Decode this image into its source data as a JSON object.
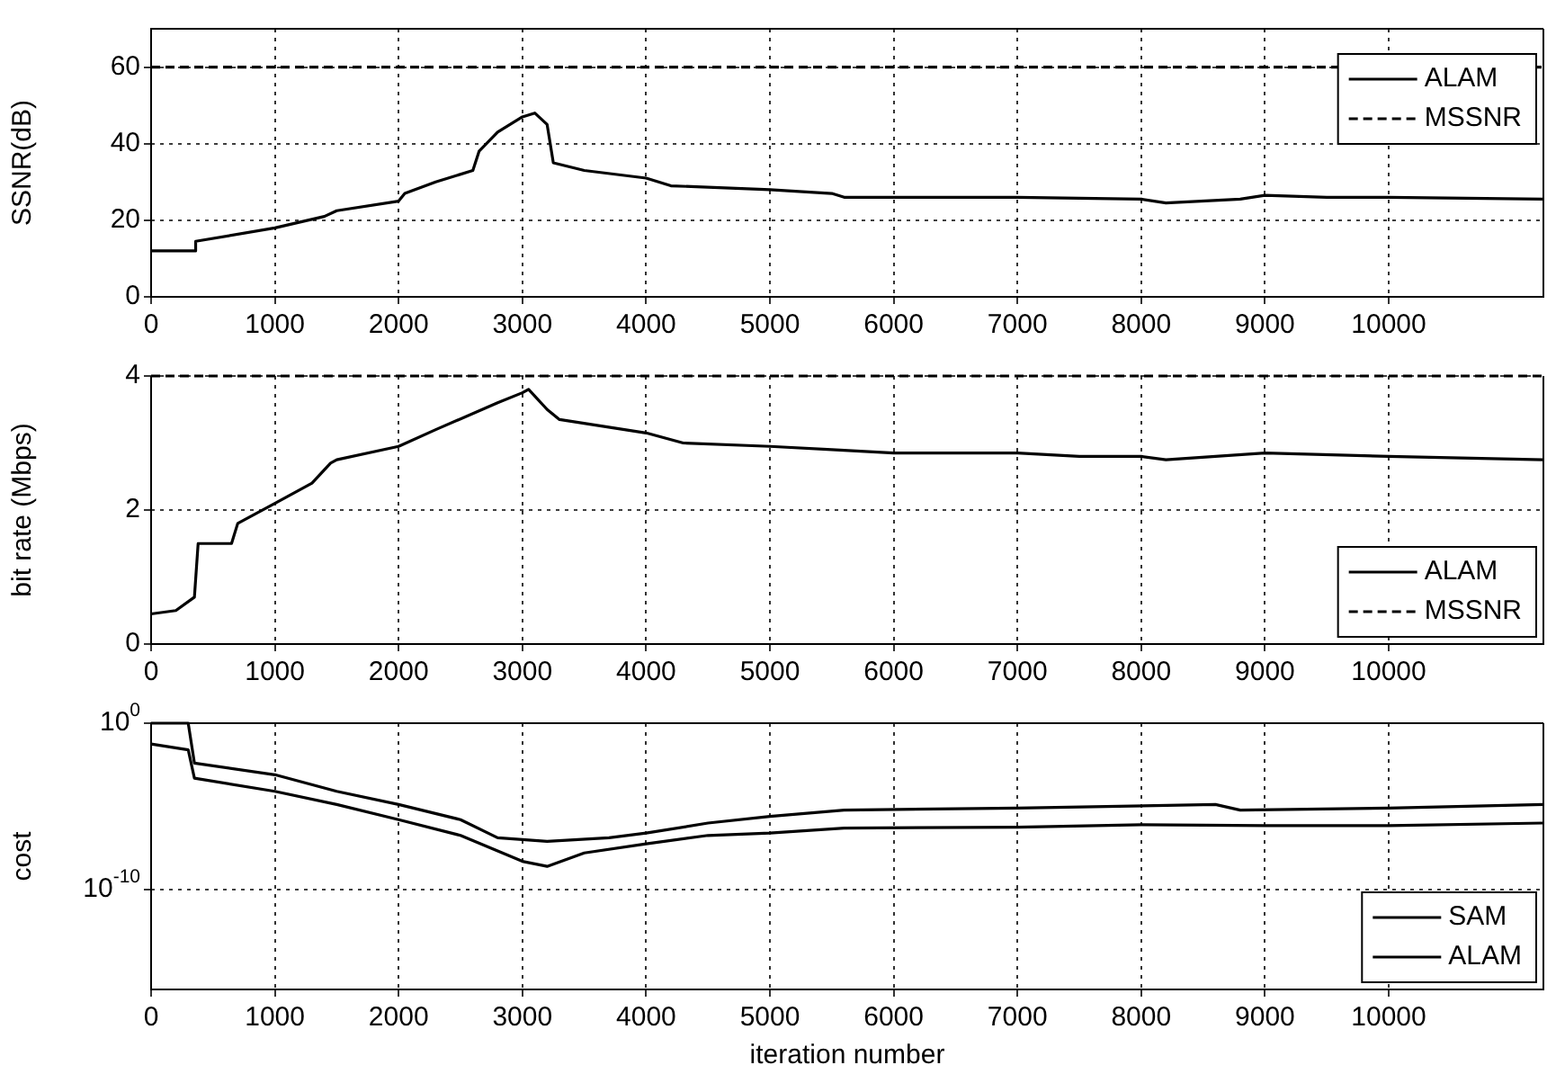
{
  "chart_data": [
    {
      "type": "line",
      "ylabel": "SSNR(dB)",
      "xlim": [
        0,
        11250
      ],
      "xticks": [
        0,
        1000,
        2000,
        3000,
        4000,
        5000,
        6000,
        7000,
        8000,
        9000,
        10000
      ],
      "ylim": [
        0,
        70
      ],
      "yticks": [
        0,
        20,
        40,
        60
      ],
      "grid": true,
      "legend": "top right",
      "marker": "none",
      "series": [
        {
          "name": "ALAM",
          "color": "#000000",
          "line_style": "solid",
          "x": [
            0,
            350,
            360,
            1000,
            1400,
            1500,
            2000,
            2050,
            2300,
            2600,
            2650,
            2800,
            3000,
            3100,
            3200,
            3250,
            3500,
            4000,
            4200,
            5000,
            5500,
            5600,
            7000,
            8000,
            8200,
            8800,
            9000,
            9500,
            10000,
            11250
          ],
          "values": [
            12,
            12,
            14.5,
            18,
            21,
            22.5,
            25,
            27,
            30,
            33,
            38,
            43,
            47,
            48,
            45,
            35,
            33,
            31,
            29,
            28,
            27,
            26,
            26,
            25.5,
            24.5,
            25.5,
            26.5,
            26,
            26,
            25.5
          ]
        },
        {
          "name": "MSSNR",
          "color": "#000000",
          "line_style": "dashed",
          "x": [
            0,
            11250
          ],
          "values": [
            60,
            60
          ]
        }
      ]
    },
    {
      "type": "line",
      "ylabel": "bit rate (Mbps)",
      "xlim": [
        0,
        11250
      ],
      "xticks": [
        0,
        1000,
        2000,
        3000,
        4000,
        5000,
        6000,
        7000,
        8000,
        9000,
        10000
      ],
      "ylim": [
        0,
        4
      ],
      "yticks": [
        0,
        2,
        4
      ],
      "grid": true,
      "legend": "bottom right",
      "marker": "none",
      "series": [
        {
          "name": "ALAM",
          "color": "#000000",
          "line_style": "solid",
          "x": [
            0,
            200,
            350,
            380,
            650,
            700,
            1000,
            1300,
            1450,
            1500,
            2000,
            2300,
            2800,
            3000,
            3050,
            3200,
            3300,
            4000,
            4300,
            5000,
            5500,
            6000,
            7000,
            7500,
            8000,
            8200,
            9000,
            10000,
            11250
          ],
          "values": [
            0.45,
            0.5,
            0.7,
            1.5,
            1.5,
            1.8,
            2.1,
            2.4,
            2.7,
            2.75,
            2.95,
            3.2,
            3.6,
            3.75,
            3.8,
            3.5,
            3.35,
            3.15,
            3.0,
            2.95,
            2.9,
            2.85,
            2.85,
            2.8,
            2.8,
            2.75,
            2.85,
            2.8,
            2.75
          ]
        },
        {
          "name": "MSSNR",
          "color": "#000000",
          "line_style": "dashed",
          "x": [
            0,
            11250
          ],
          "values": [
            4,
            4
          ]
        }
      ]
    },
    {
      "type": "line",
      "xlabel": "iteration number",
      "ylabel": "cost",
      "log": "y",
      "xlim": [
        0,
        11250
      ],
      "xticks": [
        0,
        1000,
        2000,
        3000,
        4000,
        5000,
        6000,
        7000,
        8000,
        9000,
        10000
      ],
      "ylim": [
        1e-16,
        1
      ],
      "yticks": [
        {
          "value": 1,
          "label": "10$^{0}$"
        },
        {
          "value": 1e-10,
          "label": "10$^{-10}$"
        }
      ],
      "grid": true,
      "legend": "bottom right",
      "marker": "none",
      "series": [
        {
          "name": "SAM",
          "color": "#000000",
          "line_style": "solid",
          "x": [
            0,
            300,
            350,
            1000,
            1500,
            2000,
            2500,
            2800,
            3200,
            3700,
            4000,
            4500,
            5000,
            5600,
            7000,
            8600,
            8800,
            10000,
            11250
          ],
          "values": [
            1,
            1,
            0.004,
            0.0008,
            8e-05,
            1.3e-05,
            1.6e-06,
            1.3e-07,
            8e-08,
            1.3e-07,
            2.5e-07,
            1e-06,
            2.5e-06,
            6e-06,
            8e-06,
            1.3e-05,
            6e-06,
            8e-06,
            1.3e-05
          ]
        },
        {
          "name": "ALAM",
          "color": "#000000",
          "line_style": "solid",
          "x": [
            0,
            300,
            350,
            1000,
            1500,
            2000,
            2500,
            3000,
            3200,
            3500,
            4000,
            4500,
            5000,
            5600,
            7000,
            8000,
            9000,
            10000,
            11250
          ],
          "values": [
            0.056,
            0.025,
            0.0005,
            8e-05,
            1.3e-05,
            1.6e-06,
            1.8e-07,
            5e-09,
            2.5e-09,
            1.6e-08,
            5.6e-08,
            1.8e-07,
            2.5e-07,
            5e-07,
            5.6e-07,
            8e-07,
            7e-07,
            7e-07,
            1e-06
          ]
        }
      ]
    }
  ]
}
